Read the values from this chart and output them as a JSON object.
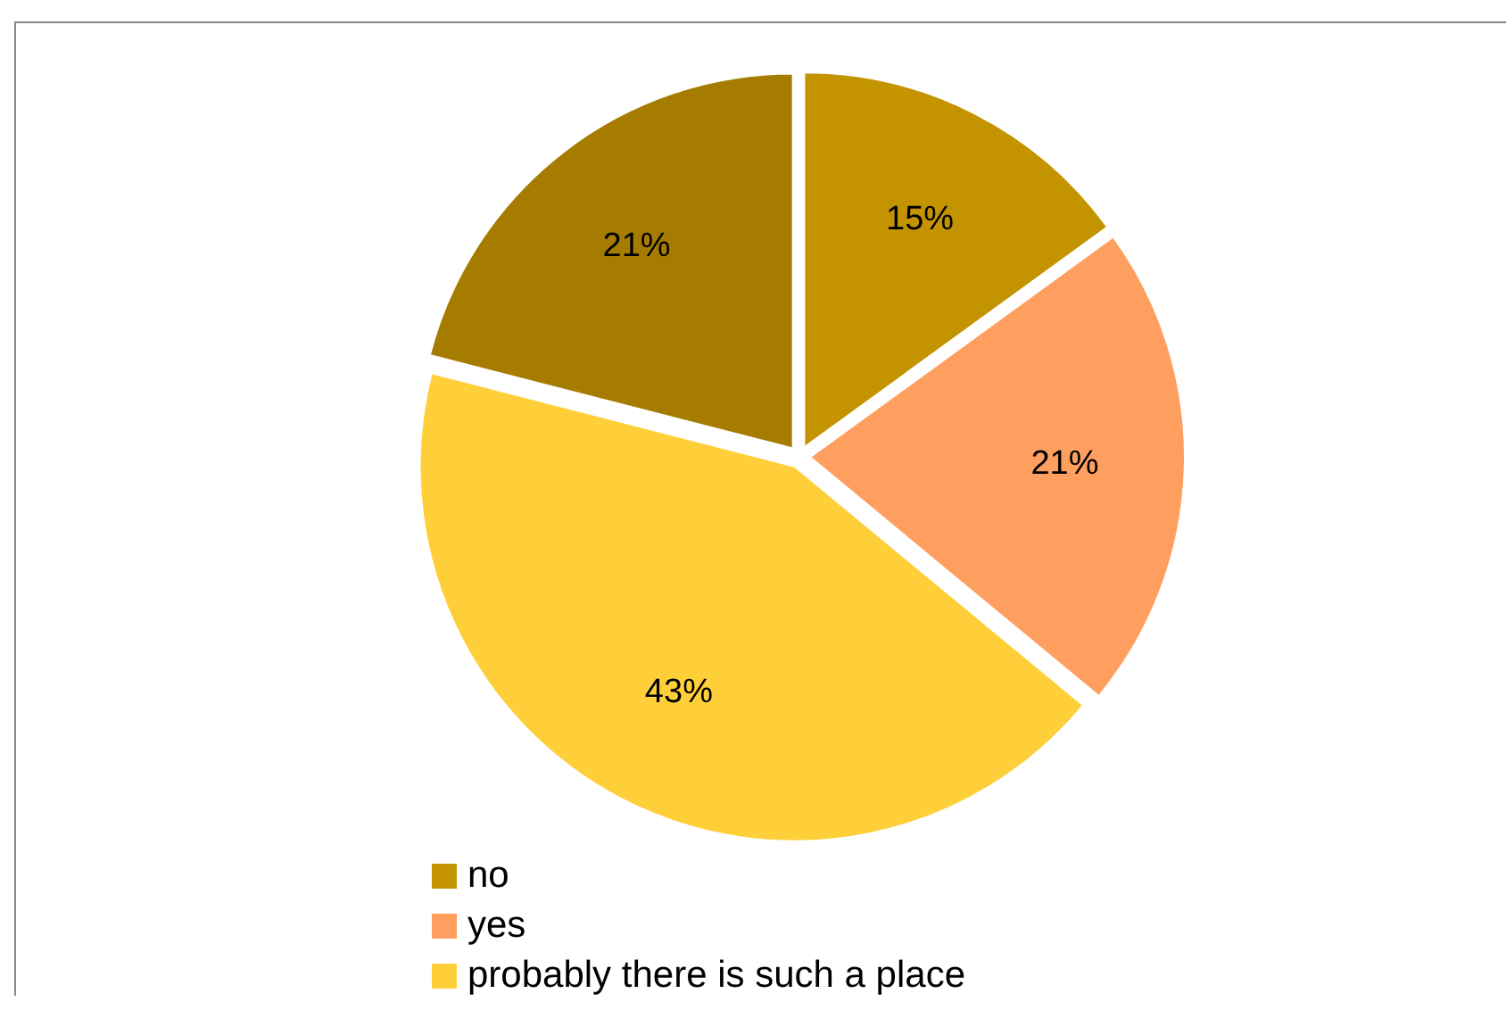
{
  "chart_data": {
    "type": "pie",
    "categories": [
      "no",
      "yes",
      "probably there is such a place",
      null
    ],
    "values": [
      15,
      21,
      43,
      21
    ],
    "value_labels": [
      "15%",
      "21%",
      "43%",
      "21%"
    ],
    "colors": [
      "#c49400",
      "#ff9f5f",
      "#ffcf3a",
      "#a67c00"
    ],
    "legend": "bottom"
  }
}
